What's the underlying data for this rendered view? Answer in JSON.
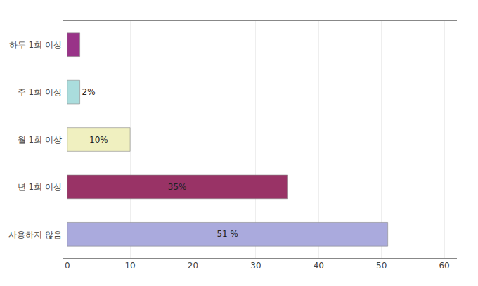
{
  "chart_data": {
    "type": "bar",
    "orientation": "horizontal",
    "categories": [
      "사용하지 않음",
      "년 1회 이상",
      "월 1회 이상",
      "주 1회 이상",
      "하두 1회 이상"
    ],
    "values": [
      51,
      35,
      10,
      2,
      2
    ],
    "value_labels": [
      "51 %",
      "35%",
      "10%",
      "2%",
      null
    ],
    "data_labels": true,
    "colors": [
      "#AAAADD",
      "#993366",
      "#F0F0C0",
      "#AADDDD",
      "#993388"
    ],
    "xlim": [
      -0.75,
      62
    ],
    "xticks": [
      0,
      10,
      20,
      30,
      40,
      50,
      60
    ],
    "grid": true
  }
}
